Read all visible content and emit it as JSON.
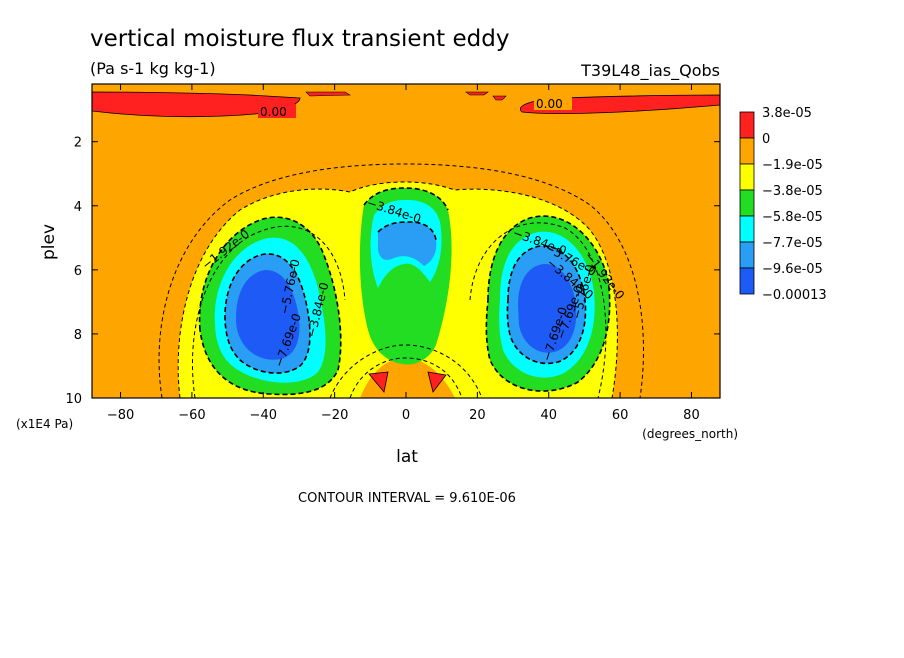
{
  "chart_data": {
    "type": "heatmap",
    "title": "vertical moisture flux transient eddy",
    "subtitle": "(Pa s-1 kg kg-1)",
    "model_label": "T39L48_ias_Qobs",
    "xlabel": "lat",
    "x_units": "(degrees_north)",
    "ylabel": "plev",
    "y_units": "(x1E4 Pa)",
    "xlim": [
      -88,
      88
    ],
    "ylim": [
      0.2,
      10
    ],
    "y_inverted": true,
    "x_ticks": [
      -80,
      -60,
      -40,
      -20,
      0,
      20,
      40,
      60,
      80
    ],
    "y_ticks": [
      2,
      4,
      6,
      8,
      10
    ],
    "contour_interval_text": "CONTOUR INTERVAL = 9.610E-06",
    "colorbar": {
      "labels": [
        "3.8e-05",
        "0",
        "−1.9e-05",
        "−3.8e-05",
        "−5.8e-05",
        "−7.7e-05",
        "−9.6e-05",
        "−0.00013"
      ],
      "colors": [
        "#ff2020",
        "#ffa500",
        "#ffff00",
        "#22dd22",
        "#00ffff",
        "#2a9df4",
        "#1e5af5"
      ]
    },
    "features": [
      {
        "name": "sh_minimum",
        "lat": -40,
        "plev": 7.2,
        "min": -0.00013
      },
      {
        "name": "equatorial_minimum",
        "lat": 0,
        "plev": 5.0,
        "min": -9.6e-05
      },
      {
        "name": "nh_minimum",
        "lat": 38,
        "plev": 7.2,
        "min": -0.00013
      },
      {
        "name": "upper_positive_sh",
        "lat_range": [
          -88,
          -30
        ],
        "plev": 0.6,
        "max": 3.8e-05
      },
      {
        "name": "upper_positive_nh",
        "lat_range": [
          30,
          88
        ],
        "plev": 0.6,
        "max": 3.8e-05
      },
      {
        "name": "lower_positive_pair",
        "lat": [
          -8,
          8
        ],
        "plev": 9.4,
        "max": 3.8e-05
      }
    ],
    "contour_labels": [
      "0.00",
      "0.00",
      "−1.92e-0",
      "−3.84e-0",
      "−5.76e-0",
      "−7.69e-0",
      "−3.84e-0",
      "−3.84e-0",
      "−5.76e-0",
      "−7.69e-0",
      "−1.92e-0",
      "−3.84e-0",
      "−7.69e-0",
      "−5.76e-0"
    ]
  }
}
